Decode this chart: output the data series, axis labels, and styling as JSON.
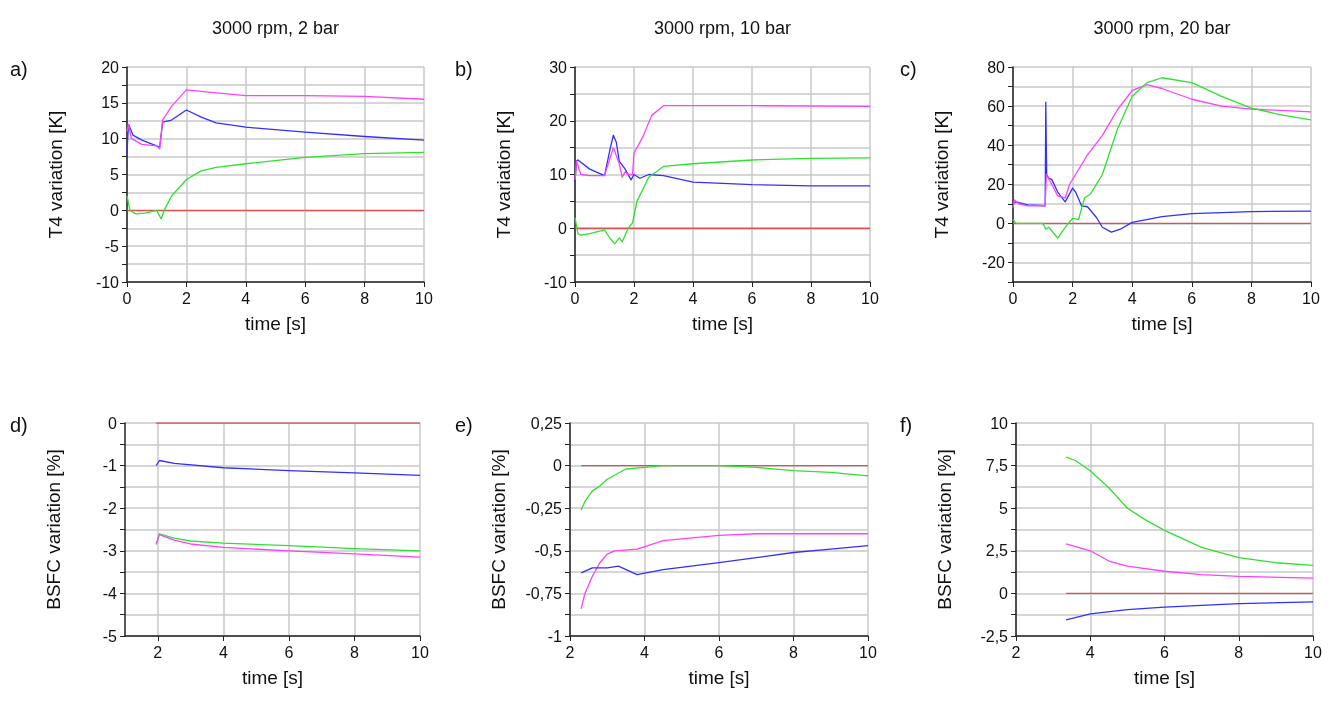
{
  "chart_data": [
    {
      "type": "line",
      "title": "3000 rpm, 2 bar",
      "annotations": [
        "a)"
      ],
      "xlabel": "time [s]",
      "ylabel": "T4 variation [K]",
      "xlim": [
        0,
        10
      ],
      "xticks": [
        0,
        2,
        4,
        6,
        8,
        10
      ],
      "ylim": [
        -10,
        20
      ],
      "yticks": [
        -10,
        {
          "value": -7.5,
          "label": null
        },
        -5,
        {
          "value": -2.5,
          "label": null
        },
        0,
        {
          "value": 2.5,
          "label": null
        },
        5,
        {
          "value": 7.5,
          "label": null
        },
        10,
        {
          "value": 12.5,
          "label": null
        },
        15,
        {
          "value": 17.5,
          "label": null
        },
        20
      ],
      "grid": true,
      "series": [
        {
          "color": "#e05050",
          "x": [
            0,
            10
          ],
          "values": [
            0,
            0
          ]
        },
        {
          "color": "#3030ff",
          "x": [
            0,
            0.05,
            0.2,
            0.5,
            1.0,
            1.1,
            1.2,
            1.5,
            2,
            2.5,
            3,
            4,
            6,
            8,
            10
          ],
          "values": [
            8,
            12,
            10.5,
            9.8,
            9,
            8.8,
            12.3,
            12.6,
            14,
            13,
            12.2,
            11.6,
            10.9,
            10.3,
            9.8
          ]
        },
        {
          "color": "#ff40ff",
          "x": [
            0,
            0.05,
            0.15,
            0.5,
            1.0,
            1.1,
            1.2,
            1.5,
            2,
            3,
            4,
            6,
            8,
            10
          ],
          "values": [
            11,
            12,
            10,
            9.2,
            9,
            8.6,
            12.6,
            14.5,
            16.8,
            16.4,
            16,
            16,
            15.9,
            15.5
          ]
        },
        {
          "color": "#30e030",
          "x": [
            0,
            0.1,
            0.3,
            0.6,
            1.0,
            1.15,
            1.25,
            1.5,
            2,
            2.5,
            3,
            4,
            6,
            8,
            10
          ],
          "values": [
            2,
            0,
            -0.5,
            -0.4,
            0,
            -1.2,
            0,
            2,
            4.3,
            5.5,
            6,
            6.5,
            7.4,
            7.9,
            8.1
          ]
        }
      ]
    },
    {
      "type": "line",
      "title": "3000 rpm, 10 bar",
      "annotations": [
        "b)"
      ],
      "xlabel": "time [s]",
      "ylabel": "T4 variation [K]",
      "xlim": [
        0,
        10
      ],
      "xticks": [
        0,
        2,
        4,
        6,
        8,
        10
      ],
      "ylim": [
        -10,
        30
      ],
      "yticks": [
        -10,
        {
          "value": -5,
          "label": null
        },
        0,
        {
          "value": 5,
          "label": null
        },
        10,
        {
          "value": 15,
          "label": null
        },
        20,
        {
          "value": 25,
          "label": null
        },
        30
      ],
      "grid": true,
      "series": [
        {
          "color": "#e05050",
          "x": [
            0,
            10
          ],
          "values": [
            0,
            0
          ]
        },
        {
          "color": "#3030ff",
          "x": [
            0,
            0.05,
            0.1,
            0.5,
            1,
            1.2,
            1.3,
            1.4,
            1.5,
            1.7,
            1.9,
            2,
            2.2,
            2.5,
            3,
            3.5,
            4,
            6,
            8,
            10
          ],
          "values": [
            8.5,
            12.5,
            12.7,
            11,
            9.8,
            15,
            17.3,
            16,
            12.5,
            11,
            9,
            10,
            9.3,
            10,
            9.8,
            9.2,
            8.6,
            8.1,
            7.9,
            7.9
          ]
        },
        {
          "color": "#ff40ff",
          "x": [
            0,
            0.05,
            0.2,
            0.5,
            1,
            1.3,
            1.5,
            1.6,
            1.7,
            1.8,
            1.95,
            2,
            2.3,
            2.6,
            3,
            3.5,
            4,
            6,
            10
          ],
          "values": [
            9,
            12.5,
            10,
            9.8,
            9.8,
            15,
            12,
            9.5,
            10.5,
            10,
            10,
            14,
            17,
            21,
            22.8,
            22.8,
            22.8,
            22.8,
            22.7
          ]
        },
        {
          "color": "#30e030",
          "x": [
            0,
            0.1,
            0.2,
            0.5,
            1,
            1.2,
            1.35,
            1.5,
            1.6,
            1.8,
            1.95,
            2.1,
            2.5,
            3,
            4,
            6,
            8,
            10
          ],
          "values": [
            2,
            -1,
            -1.3,
            -1,
            -0.3,
            -2,
            -2.9,
            -1.8,
            -2.5,
            0,
            1,
            5,
            9.5,
            11.5,
            12,
            12.7,
            13,
            13.1
          ]
        }
      ]
    },
    {
      "type": "line",
      "title": "3000 rpm, 20 bar",
      "annotations": [
        "c)"
      ],
      "xlabel": "time [s]",
      "ylabel": "T4 variation [K]",
      "xlim": [
        0,
        10
      ],
      "xticks": [
        0,
        2,
        4,
        6,
        8,
        10
      ],
      "ylim": [
        -30,
        80
      ],
      "yticks": [
        {
          "value": -30,
          "label": null
        },
        -20,
        {
          "value": -10,
          "label": null
        },
        0,
        {
          "value": 10,
          "label": null
        },
        20,
        {
          "value": 30,
          "label": null
        },
        40,
        {
          "value": 50,
          "label": null
        },
        60,
        {
          "value": 70,
          "label": null
        },
        80
      ],
      "grid": true,
      "series": [
        {
          "color": "#e05050",
          "x": [
            0,
            10
          ],
          "values": [
            0,
            0
          ]
        },
        {
          "color": "#3030ff",
          "x": [
            0,
            0.1,
            0.5,
            1.08,
            1.1,
            1.13,
            1.2,
            1.3,
            1.5,
            1.75,
            2,
            2.1,
            2.3,
            2.5,
            2.8,
            3,
            3.3,
            3.6,
            4,
            5,
            6,
            8,
            10
          ],
          "values": [
            10,
            11,
            9.5,
            9,
            62,
            25,
            23,
            22.5,
            16,
            11,
            18,
            16,
            9,
            8.5,
            3,
            -2,
            -4.5,
            -3,
            0.5,
            3.5,
            5,
            6,
            6.3
          ]
        },
        {
          "color": "#ff40ff",
          "x": [
            0,
            0.05,
            0.2,
            0.5,
            1.08,
            1.12,
            1.3,
            1.5,
            1.75,
            1.9,
            2.1,
            2.5,
            3,
            3.5,
            4,
            4.5,
            5,
            6,
            7,
            8,
            10
          ],
          "values": [
            8,
            12,
            10,
            9,
            9,
            25,
            20,
            14,
            13,
            20,
            25,
            35,
            45,
            58,
            68,
            71,
            69,
            63.5,
            60,
            58.5,
            57
          ]
        },
        {
          "color": "#30e030",
          "x": [
            0,
            0.1,
            1,
            1.1,
            1.2,
            1.5,
            1.8,
            2,
            2.2,
            2.4,
            2.6,
            3,
            3.5,
            4,
            4.5,
            5,
            6,
            7,
            8,
            9,
            10
          ],
          "values": [
            2,
            0,
            0,
            -3,
            -2,
            -7.5,
            -1,
            2.5,
            2,
            13,
            15,
            25,
            48,
            65,
            72,
            74.5,
            72,
            65,
            59,
            55.5,
            53
          ]
        }
      ]
    },
    {
      "type": "line",
      "annotations": [
        "d)"
      ],
      "xlabel": "time [s]",
      "ylabel": "BSFC variation [%]",
      "xlim": [
        1,
        10
      ],
      "xticks": [
        2,
        4,
        6,
        8,
        10
      ],
      "ylim": [
        -5,
        0
      ],
      "yticks": [
        -5,
        {
          "value": -4.5,
          "label": null
        },
        -4,
        {
          "value": -3.5,
          "label": null
        },
        -3,
        {
          "value": -2.5,
          "label": null
        },
        -2,
        {
          "value": -1.5,
          "label": null
        },
        -1,
        {
          "value": -0.5,
          "label": null
        },
        0
      ],
      "grid": true,
      "series": [
        {
          "color": "#e05050",
          "x": [
            1.95,
            10
          ],
          "values": [
            0,
            0
          ]
        },
        {
          "color": "#3030ff",
          "x": [
            1.95,
            2.05,
            2.5,
            4,
            6,
            8,
            10
          ],
          "values": [
            -1,
            -0.88,
            -0.95,
            -1.05,
            -1.12,
            -1.17,
            -1.23
          ]
        },
        {
          "color": "#30e030",
          "x": [
            1.95,
            2.05,
            2.5,
            3,
            4,
            6,
            8,
            10
          ],
          "values": [
            -2.85,
            -2.6,
            -2.7,
            -2.77,
            -2.82,
            -2.88,
            -2.95,
            -3.0
          ]
        },
        {
          "color": "#ff40ff",
          "x": [
            1.95,
            2.05,
            2.5,
            3,
            4,
            6,
            8,
            10
          ],
          "values": [
            -2.85,
            -2.62,
            -2.75,
            -2.84,
            -2.92,
            -3.0,
            -3.07,
            -3.15
          ]
        }
      ]
    },
    {
      "type": "line",
      "annotations": [
        "e)"
      ],
      "xlabel": "time [s]",
      "ylabel": "BSFC variation [%]",
      "xlim": [
        2,
        10
      ],
      "xticks": [
        2,
        4,
        6,
        8,
        10
      ],
      "ylim": [
        -1,
        0.25
      ],
      "yticks": [
        -1,
        {
          "value": -0.875,
          "label": null
        },
        {
          "value": -0.75,
          "label": "-0,75"
        },
        {
          "value": -0.625,
          "label": null
        },
        {
          "value": -0.5,
          "label": "-0,5"
        },
        {
          "value": -0.375,
          "label": null
        },
        {
          "value": -0.25,
          "label": "-0,25"
        },
        {
          "value": -0.125,
          "label": null
        },
        0,
        {
          "value": 0.125,
          "label": null
        },
        {
          "value": 0.25,
          "label": "0,25"
        }
      ],
      "grid": true,
      "series": [
        {
          "color": "#e05050",
          "x": [
            2.3,
            10
          ],
          "values": [
            0,
            0
          ]
        },
        {
          "color": "#30e030",
          "x": [
            2.3,
            2.4,
            2.6,
            2.8,
            3,
            3.5,
            4,
            4.5,
            6,
            7,
            8,
            9,
            10
          ],
          "values": [
            -0.26,
            -0.21,
            -0.15,
            -0.12,
            -0.08,
            -0.02,
            -0.01,
            0,
            0,
            -0.01,
            -0.03,
            -0.04,
            -0.06
          ]
        },
        {
          "color": "#ff40ff",
          "x": [
            2.3,
            2.4,
            2.6,
            2.8,
            3,
            3.2,
            3.8,
            4.5,
            6,
            7,
            8,
            10
          ],
          "values": [
            -0.84,
            -0.75,
            -0.65,
            -0.57,
            -0.52,
            -0.5,
            -0.49,
            -0.44,
            -0.41,
            -0.4,
            -0.4,
            -0.4
          ]
        },
        {
          "color": "#3030ff",
          "x": [
            2.3,
            2.6,
            3,
            3.3,
            3.8,
            4.5,
            6,
            7,
            8,
            9,
            10
          ],
          "values": [
            -0.63,
            -0.6,
            -0.6,
            -0.59,
            -0.64,
            -0.61,
            -0.57,
            -0.54,
            -0.51,
            -0.49,
            -0.47
          ]
        }
      ]
    },
    {
      "type": "line",
      "annotations": [
        "f)"
      ],
      "xlabel": "time [s]",
      "ylabel": "BSFC variation [%]",
      "xlim": [
        2,
        10
      ],
      "xticks": [
        2,
        4,
        6,
        8,
        10
      ],
      "ylim": [
        -2.5,
        10
      ],
      "yticks": [
        {
          "value": -2.5,
          "label": "-2,5"
        },
        {
          "value": -1.25,
          "label": null
        },
        0,
        {
          "value": 1.25,
          "label": null
        },
        {
          "value": 2.5,
          "label": "2,5"
        },
        {
          "value": 3.75,
          "label": null
        },
        5,
        {
          "value": 6.25,
          "label": null
        },
        {
          "value": 7.5,
          "label": "7,5"
        },
        {
          "value": 8.75,
          "label": null
        },
        10
      ],
      "grid": true,
      "series": [
        {
          "color": "#e05050",
          "x": [
            3.35,
            10
          ],
          "values": [
            0,
            0
          ]
        },
        {
          "color": "#30e030",
          "x": [
            3.35,
            3.6,
            4,
            4.5,
            5,
            5.5,
            6,
            7,
            8,
            9,
            10
          ],
          "values": [
            8,
            7.8,
            7.2,
            6.2,
            5,
            4.3,
            3.7,
            2.7,
            2.1,
            1.8,
            1.65
          ]
        },
        {
          "color": "#ff40ff",
          "x": [
            3.35,
            4,
            4.5,
            5,
            6,
            7,
            8,
            10
          ],
          "values": [
            2.9,
            2.5,
            1.9,
            1.6,
            1.3,
            1.1,
            1.0,
            0.9
          ]
        },
        {
          "color": "#3030ff",
          "x": [
            3.35,
            4,
            5,
            6,
            8,
            10
          ],
          "values": [
            -1.55,
            -1.2,
            -0.95,
            -0.8,
            -0.6,
            -0.5
          ]
        }
      ]
    }
  ]
}
